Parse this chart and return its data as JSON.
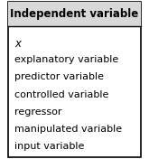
{
  "title": "Independent variable",
  "items": [
    "x",
    "explanatory variable",
    "predictor variable",
    "controlled variable",
    "regressor",
    "manipulated variable",
    "input variable"
  ],
  "x_italic": "x",
  "bg_color": "#ffffff",
  "border_color": "#000000",
  "title_bg": "#d8d8d8",
  "title_fontsize": 8.5,
  "item_fontsize": 8.0,
  "title_fontstyle": "bold",
  "figsize": [
    1.65,
    1.76
  ],
  "dpi": 100
}
